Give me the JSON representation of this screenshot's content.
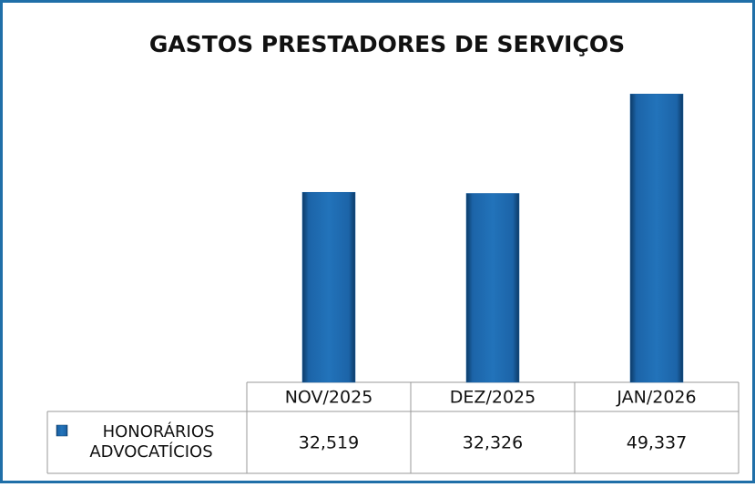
{
  "chart_data": {
    "type": "bar",
    "title": "GASTOS PRESTADORES DE SERVIÇOS",
    "categories": [
      "NOV/2025",
      "DEZ/2025",
      "JAN/2026"
    ],
    "series": [
      {
        "name": "HONORÁRIOS ADVOCATÍCIOS",
        "color": "#1c64a8",
        "values": [
          32519,
          32326,
          49337
        ],
        "value_labels": [
          "32,519",
          "32,326",
          "49,337"
        ]
      }
    ],
    "ylim": [
      0,
      50000
    ]
  }
}
